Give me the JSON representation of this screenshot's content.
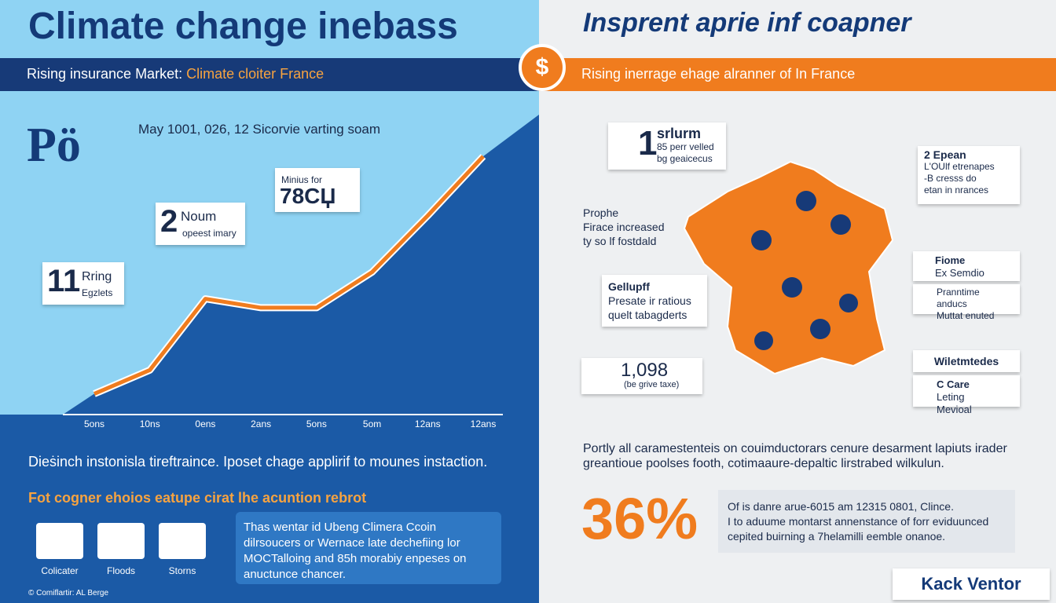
{
  "left": {
    "title": "Climate change inebass",
    "banner_text": "Rising insurance Market:",
    "banner_highlight": "Climate cloiter France",
    "logo": "Pö",
    "chart_caption": "May 1001, 026, 12 Sicorvie varting soam",
    "callouts": [
      {
        "big": "11",
        "text": "Rring",
        "small": "Egzlets"
      },
      {
        "big": "2",
        "text": "Noum",
        "small": "opeest imary"
      },
      {
        "big": "78СЏ",
        "small": "Minius for"
      }
    ],
    "description": "Dieṡinch instonisla tireftraince. Iposet chage applirif to mounes instaction.",
    "section_heading": "Fot cogner ehoios eatupe cirat lhe acuntion rebrot",
    "icons": [
      "Colicater",
      "Floods",
      "Storns"
    ],
    "info_box": "Thas wentar id Ubeng Climera Ccoin dilrsoucers or Wernace late dechefiing lor MOCTalloing and 85h morabiy enpeses on anuctunce chancer.",
    "footer": "© Comiflartir: AL Berge"
  },
  "chart_data": {
    "type": "line",
    "categories": [
      "5ons",
      "10ns",
      "0ens",
      "2ans",
      "5ons",
      "5om",
      "12ans",
      "12ans"
    ],
    "values": [
      7,
      15,
      39,
      36,
      36,
      48,
      67,
      87
    ],
    "ylim": [
      0,
      100
    ],
    "color": "#f07c1e"
  },
  "right": {
    "title": "Insprent aprie inf coapner",
    "banner_text": "Rising inerrage ehage alranner of In France",
    "stat1": {
      "big": "1",
      "head": "srlurm",
      "lines": [
        "85 perr velled",
        "bg geaicecus"
      ]
    },
    "stat2": {
      "head": "2 Epean",
      "lines": [
        "L'OUlf etrenapes",
        "-B cresss do",
        "etan in nrances"
      ]
    },
    "prophe": [
      "Prophe",
      "Firace increased",
      "ty so lf fostdald"
    ],
    "gellupff": {
      "head": "Gellupff",
      "lines": [
        "Presate ir ratious",
        "quelt tabagderts"
      ]
    },
    "fiome": {
      "head": "Fiome",
      "lines": [
        "Ex Semdio",
        "Pranntime anducs",
        "Muttat enuted"
      ]
    },
    "count": {
      "big": "1,098",
      "small": "(be grive taxe)"
    },
    "wilet": "Wiletmtedes",
    "care": {
      "head": "C Care",
      "line": "Leting Mevioal"
    },
    "paragraph": "Portly all caramestenteis on couimductorars cenure desarment lapiuts irader greantioue poolses footh, cotimaaure-depaltic lirstrabed wilkulun.",
    "big_stat": "36%",
    "box_lines": [
      "Of is danre arue-6015 am 12315 0801, Clince.",
      "I to aduume montarst annenstance of forr eviduunced",
      "cepited buirning a 7helamilli eemble onanoe."
    ],
    "brand": "Kack Ventor"
  }
}
